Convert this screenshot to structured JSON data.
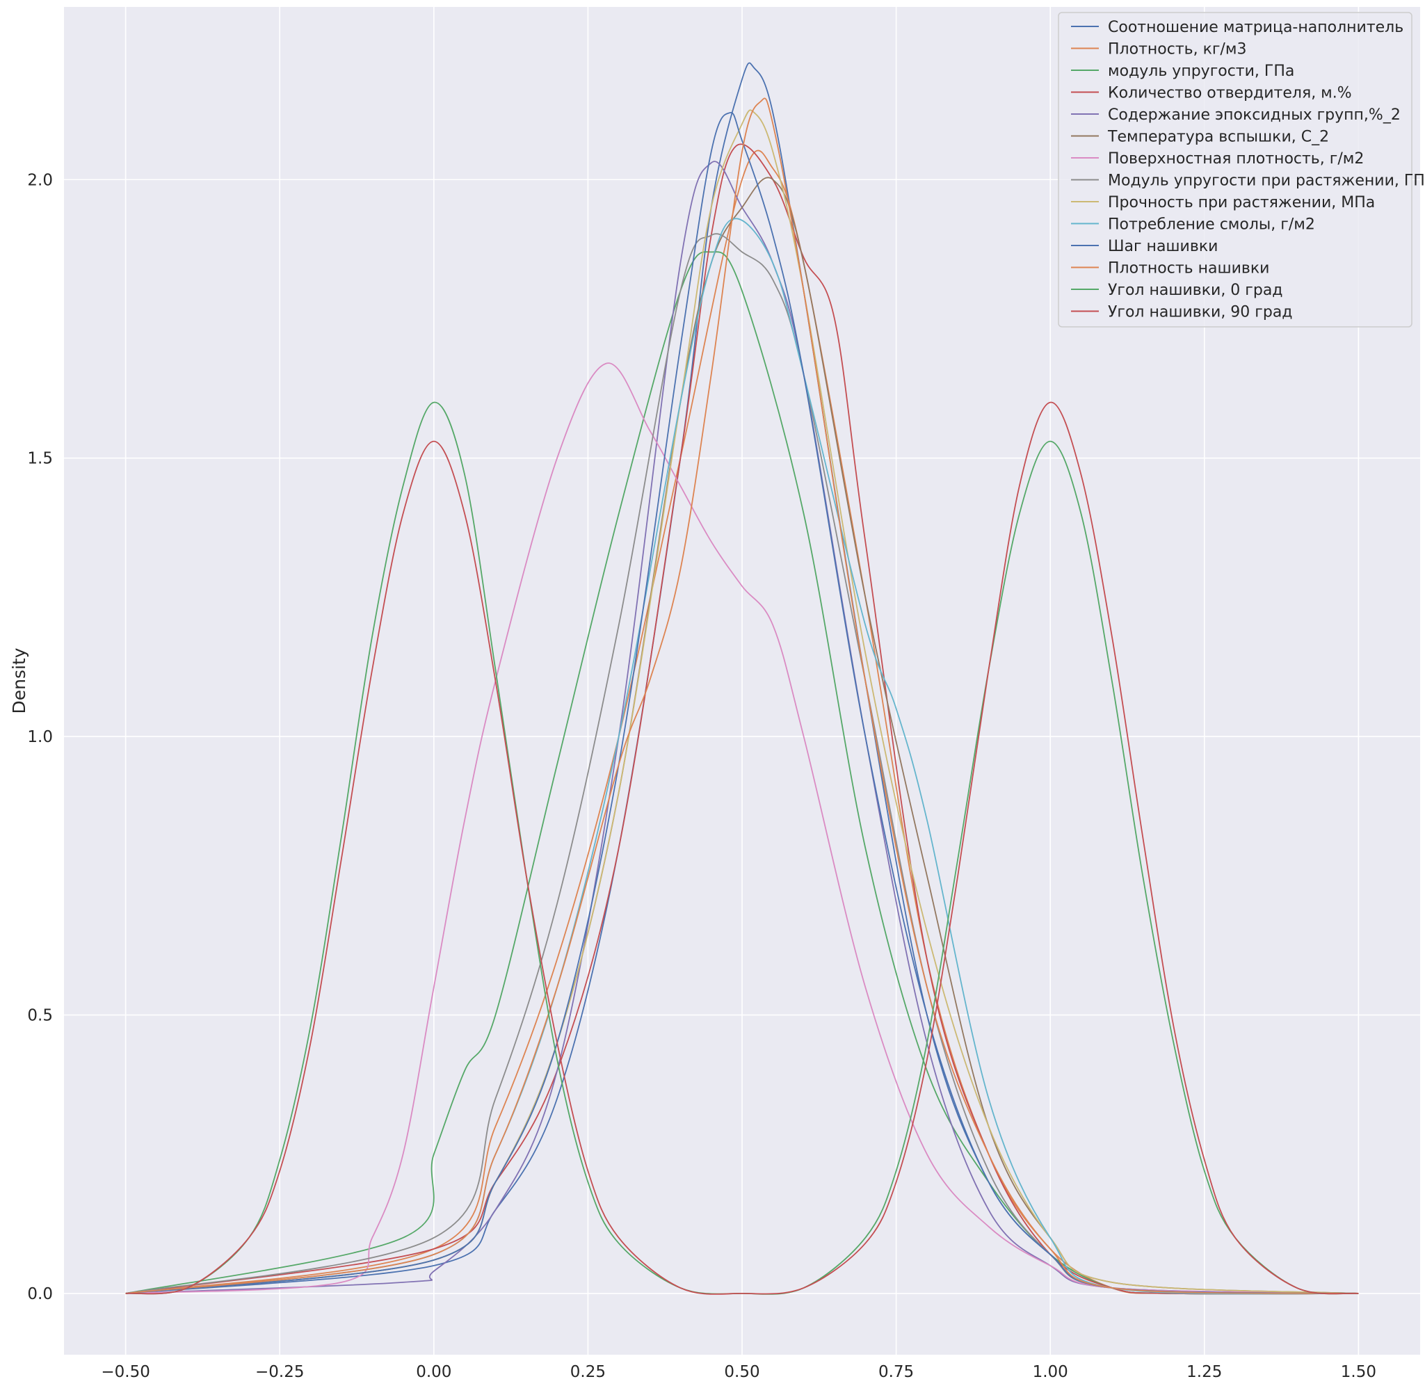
{
  "chart_data": {
    "type": "line",
    "title": "",
    "xlabel": "",
    "ylabel": "Density",
    "xlim": [
      -0.6,
      1.6
    ],
    "ylim": [
      -0.11,
      2.31
    ],
    "xticks": [
      "−0.50",
      "−0.25",
      "0.00",
      "0.25",
      "0.50",
      "0.75",
      "1.00",
      "1.25",
      "1.50"
    ],
    "xtick_values": [
      -0.5,
      -0.25,
      0,
      0.25,
      0.5,
      0.75,
      1.0,
      1.25,
      1.5
    ],
    "yticks": [
      "0.0",
      "0.5",
      "1.0",
      "1.5",
      "2.0"
    ],
    "ytick_values": [
      0,
      0.5,
      1.0,
      1.5,
      2.0
    ],
    "grid": true,
    "legend_position": "top-right",
    "background": "#eaeaf2",
    "series": [
      {
        "name": "Соотношение матрица-наполнитель",
        "color": "#4c72b0",
        "x": [
          -0.5,
          0.0,
          0.1,
          0.2,
          0.3,
          0.4,
          0.45,
          0.5,
          0.52,
          0.55,
          0.6,
          0.7,
          0.8,
          0.9,
          1.0,
          1.1,
          1.2,
          1.5
        ],
        "y": [
          0,
          0.05,
          0.15,
          0.35,
          0.8,
          1.5,
          1.95,
          2.18,
          2.2,
          2.12,
          1.8,
          1.1,
          0.5,
          0.2,
          0.07,
          0.01,
          0,
          0
        ]
      },
      {
        "name": "Плотность, кг/м3",
        "color": "#dd8452",
        "x": [
          -0.5,
          0.0,
          0.1,
          0.2,
          0.3,
          0.4,
          0.5,
          0.55,
          0.6,
          0.7,
          0.8,
          0.9,
          1.0,
          1.1,
          1.2,
          1.5
        ],
        "y": [
          0,
          0.08,
          0.3,
          0.6,
          1.0,
          1.5,
          2.0,
          2.02,
          1.85,
          1.25,
          0.6,
          0.25,
          0.08,
          0.01,
          0,
          0
        ]
      },
      {
        "name": "модуль упругости, ГПа",
        "color": "#55a868",
        "x": [
          -0.5,
          -0.05,
          0.0,
          0.05,
          0.1,
          0.2,
          0.3,
          0.4,
          0.45,
          0.5,
          0.6,
          0.7,
          0.8,
          0.9,
          1.0,
          1.1,
          1.2,
          1.5
        ],
        "y": [
          0,
          0.1,
          0.25,
          0.4,
          0.5,
          0.95,
          1.4,
          1.8,
          1.87,
          1.8,
          1.4,
          0.8,
          0.4,
          0.2,
          0.07,
          0.01,
          0,
          0
        ]
      },
      {
        "name": "Количество отвердителя, м.%",
        "color": "#c44e52",
        "x": [
          -0.5,
          0.0,
          0.1,
          0.2,
          0.3,
          0.4,
          0.45,
          0.49,
          0.55,
          0.6,
          0.65,
          0.7,
          0.8,
          0.9,
          1.0,
          1.1,
          1.2,
          1.5
        ],
        "y": [
          0,
          0.08,
          0.2,
          0.4,
          0.8,
          1.5,
          1.9,
          2.06,
          2.0,
          1.86,
          1.75,
          1.35,
          0.6,
          0.25,
          0.07,
          0.01,
          0,
          0
        ]
      },
      {
        "name": "Содержание эпоксидных групп,%_2",
        "color": "#8172b3",
        "x": [
          -0.5,
          -0.05,
          0.0,
          0.1,
          0.2,
          0.3,
          0.4,
          0.45,
          0.5,
          0.55,
          0.6,
          0.7,
          0.8,
          0.9,
          1.0,
          1.1,
          1.5
        ],
        "y": [
          0,
          0.02,
          0.04,
          0.15,
          0.4,
          1.0,
          1.85,
          2.03,
          1.95,
          1.85,
          1.65,
          1.0,
          0.45,
          0.15,
          0.05,
          0.01,
          0
        ]
      },
      {
        "name": "Температура вспышки, С_2",
        "color": "#937860",
        "x": [
          -0.5,
          0.0,
          0.1,
          0.2,
          0.3,
          0.4,
          0.45,
          0.5,
          0.55,
          0.6,
          0.7,
          0.8,
          0.9,
          1.0,
          1.1,
          1.5
        ],
        "y": [
          0,
          0.06,
          0.2,
          0.45,
          0.9,
          1.6,
          1.85,
          1.95,
          2.0,
          1.85,
          1.25,
          0.75,
          0.3,
          0.1,
          0.02,
          0
        ]
      },
      {
        "name": "Поверхностная плотность, г/м2",
        "color": "#da8bc3",
        "x": [
          -0.5,
          -0.15,
          -0.1,
          -0.05,
          0.0,
          0.05,
          0.1,
          0.2,
          0.28,
          0.35,
          0.4,
          0.45,
          0.5,
          0.55,
          0.6,
          0.7,
          0.8,
          0.9,
          1.0,
          1.1,
          1.5
        ],
        "y": [
          0,
          0.02,
          0.1,
          0.25,
          0.55,
          0.85,
          1.1,
          1.5,
          1.67,
          1.55,
          1.45,
          1.35,
          1.27,
          1.2,
          1.0,
          0.55,
          0.25,
          0.12,
          0.05,
          0.01,
          0
        ]
      },
      {
        "name": "Модуль упругости при растяжении, ГПа",
        "color": "#8c8c8c",
        "x": [
          -0.5,
          0.0,
          0.1,
          0.2,
          0.3,
          0.4,
          0.45,
          0.5,
          0.55,
          0.6,
          0.7,
          0.8,
          0.9,
          1.0,
          1.1,
          1.5
        ],
        "y": [
          0,
          0.1,
          0.35,
          0.7,
          1.2,
          1.8,
          1.9,
          1.87,
          1.82,
          1.65,
          1.1,
          0.55,
          0.22,
          0.07,
          0.01,
          0
        ]
      },
      {
        "name": "Прочность при растяжении, МПа",
        "color": "#ccb974",
        "x": [
          -0.5,
          0.0,
          0.1,
          0.2,
          0.3,
          0.4,
          0.45,
          0.5,
          0.52,
          0.55,
          0.6,
          0.7,
          0.8,
          0.9,
          1.0,
          1.1,
          1.5
        ],
        "y": [
          0,
          0.06,
          0.2,
          0.45,
          0.9,
          1.6,
          1.95,
          2.1,
          2.12,
          2.05,
          1.8,
          1.15,
          0.65,
          0.3,
          0.1,
          0.02,
          0
        ]
      },
      {
        "name": "Потребление смолы, г/м2",
        "color": "#64b5cd",
        "x": [
          -0.5,
          0.0,
          0.1,
          0.2,
          0.3,
          0.4,
          0.45,
          0.49,
          0.55,
          0.6,
          0.7,
          0.75,
          0.8,
          0.9,
          1.0,
          1.1,
          1.5
        ],
        "y": [
          0,
          0.07,
          0.25,
          0.55,
          1.0,
          1.6,
          1.85,
          1.93,
          1.85,
          1.65,
          1.2,
          1.05,
          0.85,
          0.35,
          0.1,
          0.01,
          0
        ]
      },
      {
        "name": "Шаг нашивки",
        "color": "#4c72b0",
        "x": [
          -0.5,
          0.0,
          0.1,
          0.2,
          0.3,
          0.4,
          0.45,
          0.48,
          0.5,
          0.55,
          0.6,
          0.7,
          0.8,
          0.9,
          1.0,
          1.1,
          1.5
        ],
        "y": [
          0,
          0.06,
          0.2,
          0.45,
          0.95,
          1.7,
          2.05,
          2.12,
          2.07,
          1.9,
          1.65,
          1.0,
          0.5,
          0.2,
          0.07,
          0.01,
          0
        ]
      },
      {
        "name": "Плотность нашивки",
        "color": "#dd8452",
        "x": [
          -0.5,
          0.0,
          0.1,
          0.2,
          0.3,
          0.35,
          0.4,
          0.45,
          0.5,
          0.53,
          0.55,
          0.6,
          0.7,
          0.8,
          0.9,
          1.0,
          1.1,
          1.5
        ],
        "y": [
          0,
          0.07,
          0.25,
          0.55,
          0.95,
          1.1,
          1.3,
          1.65,
          2.05,
          2.14,
          2.1,
          1.8,
          1.1,
          0.55,
          0.25,
          0.08,
          0.01,
          0
        ]
      },
      {
        "name": "Угол нашивки,  0 град",
        "color": "#55a868",
        "x": [
          -0.5,
          -0.4,
          -0.3,
          -0.25,
          -0.2,
          -0.15,
          -0.1,
          -0.05,
          0.0,
          0.05,
          0.1,
          0.15,
          0.2,
          0.25,
          0.3,
          0.4,
          0.5,
          0.6,
          0.7,
          0.75,
          0.8,
          0.85,
          0.9,
          0.95,
          1.0,
          1.05,
          1.1,
          1.15,
          1.2,
          1.25,
          1.3,
          1.4,
          1.5
        ],
        "y": [
          0,
          0.01,
          0.1,
          0.24,
          0.48,
          0.82,
          1.18,
          1.45,
          1.6,
          1.47,
          1.12,
          0.75,
          0.42,
          0.2,
          0.09,
          0.01,
          0,
          0.01,
          0.1,
          0.22,
          0.45,
          0.78,
          1.12,
          1.4,
          1.53,
          1.4,
          1.1,
          0.75,
          0.45,
          0.22,
          0.1,
          0.01,
          0
        ]
      },
      {
        "name": "Угол нашивки, 90 град",
        "color": "#c44e52",
        "x": [
          -0.5,
          -0.4,
          -0.3,
          -0.25,
          -0.2,
          -0.15,
          -0.1,
          -0.05,
          0.0,
          0.05,
          0.1,
          0.15,
          0.2,
          0.25,
          0.3,
          0.4,
          0.5,
          0.6,
          0.7,
          0.75,
          0.8,
          0.85,
          0.9,
          0.95,
          1.0,
          1.05,
          1.1,
          1.15,
          1.2,
          1.25,
          1.3,
          1.4,
          1.5
        ],
        "y": [
          0,
          0.01,
          0.1,
          0.22,
          0.45,
          0.78,
          1.12,
          1.4,
          1.53,
          1.4,
          1.1,
          0.75,
          0.45,
          0.22,
          0.1,
          0.01,
          0,
          0.01,
          0.09,
          0.2,
          0.42,
          0.75,
          1.12,
          1.45,
          1.6,
          1.47,
          1.18,
          0.82,
          0.48,
          0.24,
          0.1,
          0.01,
          0
        ]
      }
    ]
  }
}
